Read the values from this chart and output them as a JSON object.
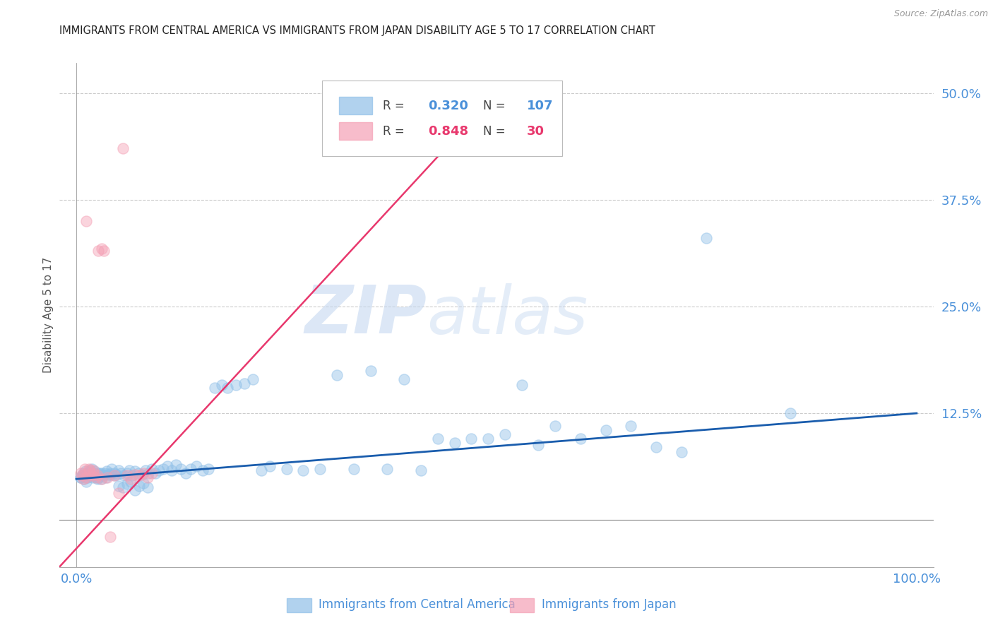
{
  "title": "IMMIGRANTS FROM CENTRAL AMERICA VS IMMIGRANTS FROM JAPAN DISABILITY AGE 5 TO 17 CORRELATION CHART",
  "source": "Source: ZipAtlas.com",
  "ylabel_label": "Disability Age 5 to 17",
  "ytick_labels": [
    "12.5%",
    "25.0%",
    "37.5%",
    "50.0%"
  ],
  "ytick_values": [
    0.125,
    0.25,
    0.375,
    0.5
  ],
  "xlim": [
    -0.02,
    1.02
  ],
  "ylim": [
    -0.055,
    0.535
  ],
  "legend_blue_r": "0.320",
  "legend_blue_n": "107",
  "legend_pink_r": "0.848",
  "legend_pink_n": "30",
  "legend_blue_label": "Immigrants from Central America",
  "legend_pink_label": "Immigrants from Japan",
  "blue_color": "#90C0E8",
  "pink_color": "#F4A0B5",
  "trend_blue_color": "#1A5DAD",
  "trend_pink_color": "#E8386D",
  "watermark_zip": "ZIP",
  "watermark_atlas": "atlas",
  "title_color": "#222222",
  "axis_label_color": "#4A90D9",
  "blue_scatter_x": [
    0.005,
    0.007,
    0.008,
    0.009,
    0.01,
    0.011,
    0.012,
    0.013,
    0.014,
    0.015,
    0.016,
    0.017,
    0.018,
    0.019,
    0.02,
    0.021,
    0.022,
    0.023,
    0.024,
    0.025,
    0.026,
    0.027,
    0.028,
    0.029,
    0.03,
    0.032,
    0.034,
    0.036,
    0.038,
    0.04,
    0.042,
    0.045,
    0.048,
    0.05,
    0.053,
    0.056,
    0.06,
    0.063,
    0.066,
    0.07,
    0.074,
    0.078,
    0.082,
    0.086,
    0.09,
    0.094,
    0.098,
    0.103,
    0.108,
    0.113,
    0.118,
    0.124,
    0.13,
    0.136,
    0.143,
    0.15,
    0.157,
    0.165,
    0.173,
    0.18,
    0.19,
    0.2,
    0.21,
    0.22,
    0.23,
    0.25,
    0.27,
    0.29,
    0.31,
    0.33,
    0.35,
    0.37,
    0.39,
    0.41,
    0.43,
    0.45,
    0.47,
    0.49,
    0.51,
    0.53,
    0.55,
    0.57,
    0.6,
    0.63,
    0.66,
    0.69,
    0.72,
    0.75,
    0.005,
    0.008,
    0.012,
    0.016,
    0.02,
    0.025,
    0.03,
    0.035,
    0.04,
    0.045,
    0.05,
    0.055,
    0.06,
    0.065,
    0.07,
    0.075,
    0.08,
    0.085,
    0.85
  ],
  "blue_scatter_y": [
    0.05,
    0.052,
    0.055,
    0.048,
    0.053,
    0.057,
    0.045,
    0.05,
    0.052,
    0.056,
    0.054,
    0.058,
    0.06,
    0.05,
    0.055,
    0.052,
    0.057,
    0.05,
    0.053,
    0.055,
    0.05,
    0.052,
    0.055,
    0.048,
    0.053,
    0.052,
    0.055,
    0.057,
    0.053,
    0.055,
    0.06,
    0.055,
    0.053,
    0.058,
    0.055,
    0.052,
    0.055,
    0.058,
    0.052,
    0.057,
    0.055,
    0.053,
    0.058,
    0.055,
    0.06,
    0.055,
    0.058,
    0.06,
    0.063,
    0.058,
    0.065,
    0.06,
    0.055,
    0.06,
    0.063,
    0.058,
    0.06,
    0.155,
    0.158,
    0.155,
    0.158,
    0.16,
    0.165,
    0.058,
    0.063,
    0.06,
    0.058,
    0.06,
    0.17,
    0.06,
    0.175,
    0.06,
    0.165,
    0.058,
    0.095,
    0.09,
    0.095,
    0.095,
    0.1,
    0.158,
    0.088,
    0.11,
    0.095,
    0.105,
    0.11,
    0.085,
    0.08,
    0.33,
    0.05,
    0.052,
    0.05,
    0.053,
    0.052,
    0.048,
    0.055,
    0.05,
    0.053,
    0.052,
    0.04,
    0.038,
    0.042,
    0.045,
    0.035,
    0.04,
    0.043,
    0.038,
    0.125
  ],
  "pink_scatter_x": [
    0.005,
    0.007,
    0.008,
    0.01,
    0.012,
    0.015,
    0.018,
    0.02,
    0.023,
    0.026,
    0.03,
    0.033,
    0.037,
    0.04,
    0.045,
    0.05,
    0.055,
    0.06,
    0.065,
    0.07,
    0.075,
    0.08,
    0.085,
    0.09,
    0.01,
    0.012,
    0.015,
    0.02,
    0.025,
    0.03
  ],
  "pink_scatter_y": [
    0.055,
    0.052,
    0.048,
    0.053,
    0.05,
    0.058,
    0.052,
    0.055,
    0.05,
    0.315,
    0.318,
    0.315,
    0.05,
    -0.02,
    0.052,
    0.032,
    0.435,
    0.052,
    0.048,
    0.053,
    0.052,
    0.055,
    0.05,
    0.055,
    0.06,
    0.35,
    0.06,
    0.058,
    0.052,
    0.048
  ],
  "blue_trend_x": [
    0.0,
    1.0
  ],
  "blue_trend_y": [
    0.048,
    0.125
  ],
  "pink_trend_x": [
    -0.025,
    0.5
  ],
  "pink_trend_y": [
    -0.06,
    0.5
  ]
}
